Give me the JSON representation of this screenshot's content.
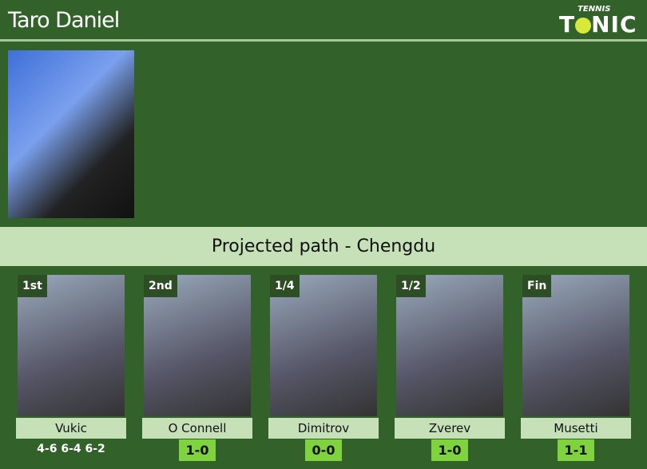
{
  "header": {
    "title": "Taro Daniel",
    "logo": "TENNIS TONIC"
  },
  "banner": "Projected path - Chengdu",
  "path": [
    {
      "round": "1st",
      "name": "Vukic",
      "result": "4-6 6-4 6-2",
      "type": "text"
    },
    {
      "round": "2nd",
      "name": "O Connell",
      "result": "1-0",
      "type": "badge"
    },
    {
      "round": "1/4",
      "name": "Dimitrov",
      "result": "0-0",
      "type": "badge"
    },
    {
      "round": "1/2",
      "name": "Zverev",
      "result": "1-0",
      "type": "badge"
    },
    {
      "round": "Fin",
      "name": "Musetti",
      "result": "1-1",
      "type": "badge"
    }
  ],
  "colors": {
    "background": "#32622a",
    "banner": "#c6e1b8",
    "badge": "#7ed33f"
  }
}
